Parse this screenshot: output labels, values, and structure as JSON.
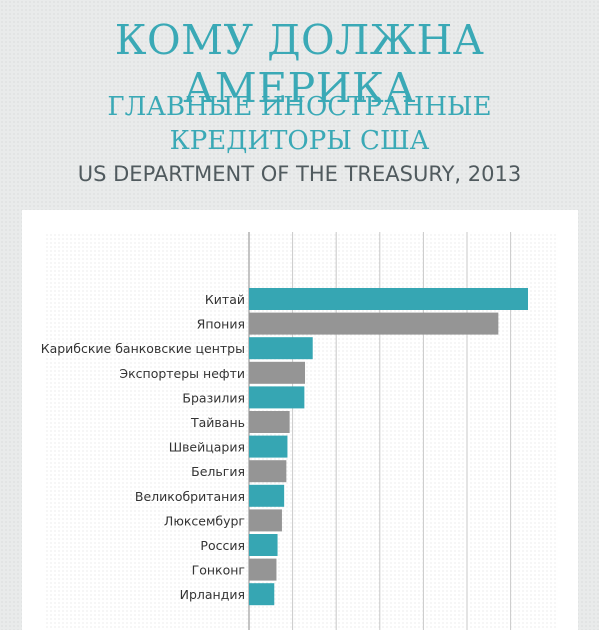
{
  "header": {
    "title": "КОМУ ДОЛЖНА АМЕРИКА",
    "subtitle_line1": "ГЛАВНЫЕ ИНОСТРАННЫЕ",
    "subtitle_line2": "КРЕДИТОРЫ США",
    "source": "US DEPARTMENT OF THE TREASURY, 2013"
  },
  "chart_data": {
    "type": "bar",
    "orientation": "horizontal",
    "title": "",
    "xlabel": "",
    "ylabel": "",
    "grid": true,
    "xlim": [
      0,
      1400
    ],
    "categories": [
      "Китай",
      "Япония",
      "Карибские банковские центры",
      "Экспортеры нефти",
      "Бразилия",
      "Тайвань",
      "Швейцария",
      "Бельгия",
      "Великобритания",
      "Люксембург",
      "Россия",
      "Гонконг",
      "Ирландия"
    ],
    "values": [
      1270,
      1135,
      290,
      255,
      252,
      185,
      175,
      170,
      160,
      150,
      130,
      125,
      115
    ],
    "bar_colors": [
      "#36a6b3",
      "#959595",
      "#36a6b3",
      "#959595",
      "#36a6b3",
      "#959595",
      "#36a6b3",
      "#959595",
      "#36a6b3",
      "#959595",
      "#36a6b3",
      "#959595",
      "#36a6b3"
    ]
  }
}
